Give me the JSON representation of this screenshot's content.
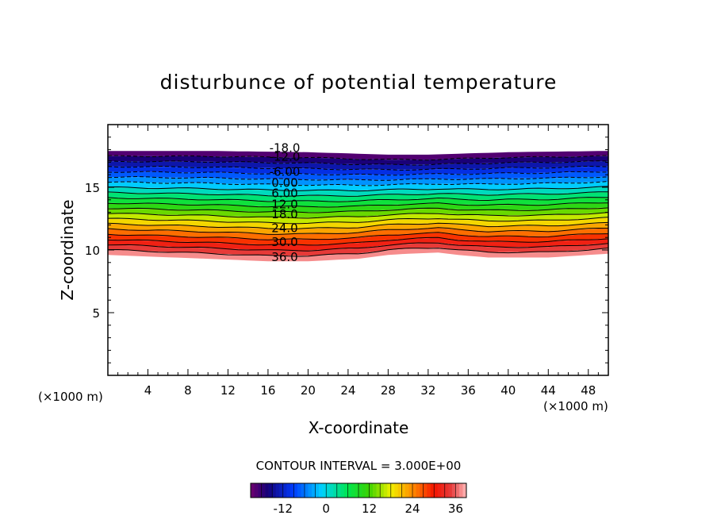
{
  "chart_data": {
    "type": "contour",
    "title": "disturbunce of potential temperature",
    "xlabel": "X-coordinate",
    "ylabel": "Z-coordinate",
    "x_unit_label": "(×1000 m)",
    "y_unit_label": "(×1000 m)",
    "xlim": [
      0,
      50
    ],
    "ylim": [
      0,
      20
    ],
    "x_ticks": [
      "4",
      "8",
      "12",
      "16",
      "20",
      "24",
      "28",
      "32",
      "36",
      "40",
      "44",
      "48"
    ],
    "y_ticks": [
      "5",
      "10",
      "15"
    ],
    "contour_interval_text": "CONTOUR INTERVAL = 3.000E+00",
    "contour_interval": 3.0,
    "value_range": [
      -21,
      39
    ],
    "negative_contours_dashed": true,
    "contour_labels": [
      "-18.0",
      "-12.0",
      "-6.00",
      "0.00",
      "6.00",
      "12.0",
      "18.0",
      "24.0",
      "30.0",
      "36.0"
    ],
    "contour_label_heights": [
      18.2,
      17.5,
      16.3,
      15.4,
      14.6,
      13.7,
      12.9,
      11.8,
      10.7,
      9.5
    ],
    "field_top_height_profile": {
      "x": [
        0,
        10,
        20,
        28,
        32,
        36,
        40,
        50
      ],
      "z": [
        17.9,
        17.9,
        17.8,
        17.6,
        17.6,
        17.7,
        17.8,
        17.9
      ]
    },
    "field_bottom_height_profile": {
      "x": [
        0,
        10,
        16,
        20,
        25,
        28,
        30,
        33,
        35,
        38,
        44,
        50
      ],
      "z": [
        9.6,
        9.3,
        9.1,
        9.1,
        9.3,
        9.6,
        9.7,
        9.8,
        9.6,
        9.4,
        9.4,
        9.7
      ]
    },
    "colorbar": {
      "tick_labels": [
        "-12",
        "0",
        "12",
        "24",
        "36"
      ],
      "tick_values": [
        -12,
        0,
        12,
        24,
        36
      ],
      "min": -21,
      "max": 39,
      "colormap": "rainbow (purple-blue-cyan-green-yellow-red-pink)"
    }
  }
}
